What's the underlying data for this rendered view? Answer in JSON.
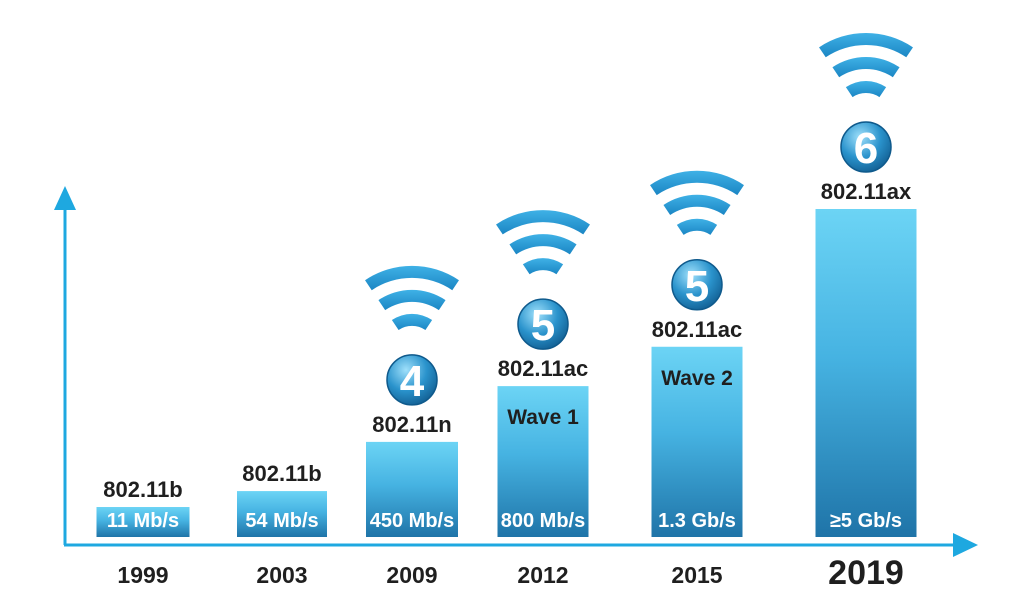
{
  "chart_data": {
    "type": "bar",
    "categories": [
      "1999",
      "2003",
      "2009",
      "2012",
      "2015",
      "2019"
    ],
    "standards": [
      "802.11b",
      "802.11b",
      "802.11n",
      "802.11ac",
      "802.11ac",
      "802.11ax"
    ],
    "speed_labels": [
      "11 Mb/s",
      "54 Mb/s",
      "450 Mb/s",
      "800 Mb/s",
      "1.3 Gb/s",
      "≥5 Gb/s"
    ],
    "waves": [
      "",
      "",
      "",
      "Wave 1",
      "Wave 2",
      ""
    ],
    "generation_badges": [
      "",
      "",
      "4",
      "5",
      "5",
      "6"
    ],
    "values_mbps": [
      11,
      54,
      450,
      800,
      1300,
      5000
    ],
    "relative_heights": [
      0.09,
      0.14,
      0.29,
      0.46,
      0.58,
      1.0
    ],
    "wifi_icon": "wifi-icon",
    "colors": {
      "bar_top": "#6cd4f5",
      "bar_bottom": "#1f74a8",
      "axis": "#1ea8e0",
      "badge": "#2a93cc",
      "text": "#1f1f1f"
    }
  }
}
